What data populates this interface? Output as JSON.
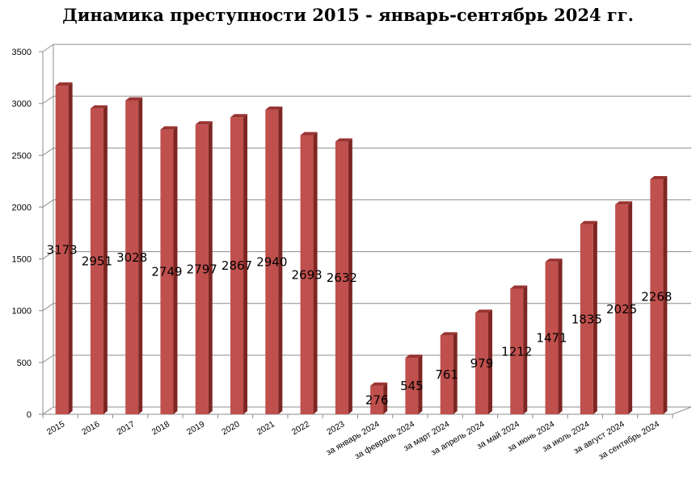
{
  "chart_data": {
    "type": "bar",
    "title": "Динамика преступности 2015 - январь-сентябрь 2024 гг.",
    "categories": [
      "2015",
      "2016",
      "2017",
      "2018",
      "2019",
      "2020",
      "2021",
      "2022",
      "2023",
      "за январь 2024",
      "за февраль 2024",
      "за март 2024",
      "за апрель 2024",
      "за май 2024",
      "за июнь 2024",
      "за июль 2024",
      "за август 2024",
      "за сентябрь 2024"
    ],
    "values": [
      3173,
      2951,
      3028,
      2749,
      2797,
      2867,
      2940,
      2693,
      2632,
      276,
      545,
      761,
      979,
      1212,
      1471,
      1835,
      2025,
      2268
    ],
    "ylim": [
      0,
      3500
    ],
    "yticks": [
      0,
      500,
      1000,
      1500,
      2000,
      2500,
      3000,
      3500
    ],
    "grid": true,
    "legend": "none",
    "bar_color": "#C0504D",
    "bar_side_color": "#7E2623",
    "bar_top_color": "#9A3431"
  }
}
